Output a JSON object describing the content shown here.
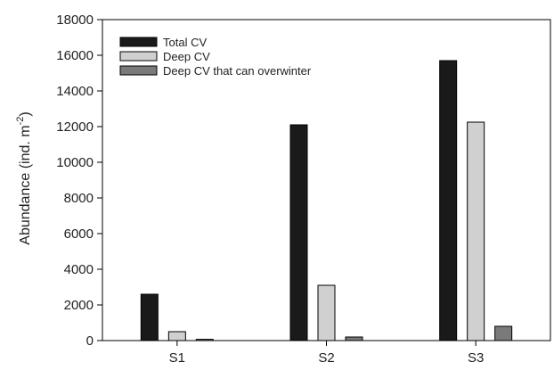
{
  "chart_data": {
    "type": "bar",
    "categories": [
      "S1",
      "S2",
      "S3"
    ],
    "series": [
      {
        "name": "Total CV",
        "values": [
          2600,
          12100,
          15700
        ],
        "color": "#1a1a1a"
      },
      {
        "name": "Deep CV",
        "values": [
          500,
          3100,
          12250
        ],
        "color": "#d0d0d0"
      },
      {
        "name": "Deep CV that can overwinter",
        "values": [
          70,
          200,
          800
        ],
        "color": "#7a7a7a"
      }
    ],
    "ylabel_main": "Abundance (ind. m",
    "ylabel_sup": "-2",
    "ylabel_end": ")",
    "ylim": [
      0,
      18000
    ],
    "yticks": [
      0,
      2000,
      4000,
      6000,
      8000,
      10000,
      12000,
      14000,
      16000,
      18000
    ],
    "legend_position": "top-left",
    "grid": false
  }
}
